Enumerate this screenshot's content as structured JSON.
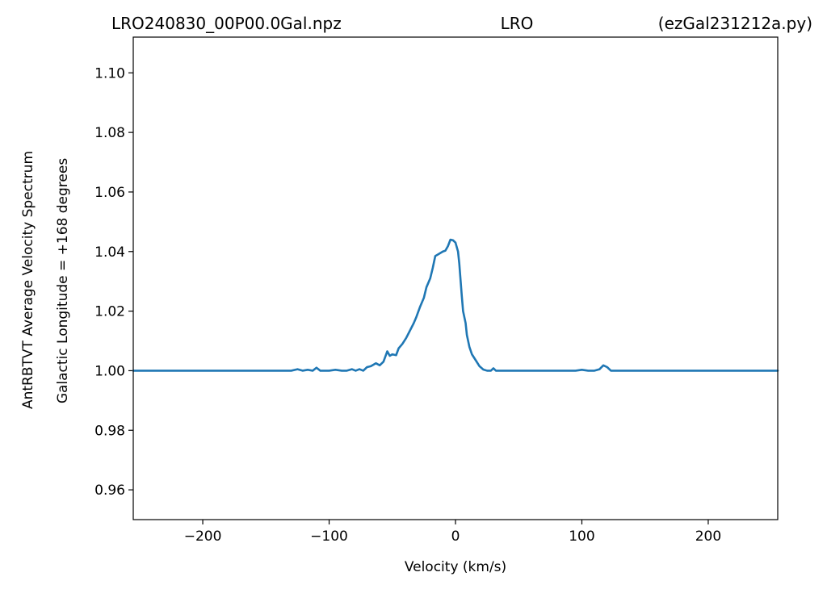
{
  "chart_data": {
    "type": "line",
    "title_left": "LRO240830_00P00.0Gal.npz",
    "title_center": "LRO",
    "title_right": "(ezGal231212a.py)",
    "xlabel": "Velocity (km/s)",
    "ylabel": "AntRBTVT Average Velocity Spectrum",
    "ylabel2": "Galactic Longitude = +168 degrees",
    "xlim": [
      -255,
      255
    ],
    "ylim": [
      0.95,
      1.112
    ],
    "xticks": [
      -200,
      -100,
      0,
      100,
      200
    ],
    "xtick_labels": [
      "−200",
      "−100",
      "0",
      "100",
      "200"
    ],
    "yticks": [
      0.96,
      0.98,
      1.0,
      1.02,
      1.04,
      1.06,
      1.08,
      1.1
    ],
    "ytick_labels": [
      "0.96",
      "0.98",
      "1.00",
      "1.02",
      "1.04",
      "1.06",
      "1.08",
      "1.10"
    ],
    "grid": false,
    "series": [
      {
        "color": "#1f77b4",
        "x": [
          -255,
          -130,
          -125,
          -121,
          -117,
          -113,
          -110,
          -107,
          -100,
          -95,
          -90,
          -86,
          -82,
          -79,
          -76,
          -73,
          -70,
          -67,
          -63,
          -60,
          -57,
          -54,
          -52,
          -50,
          -47,
          -45,
          -42,
          -39,
          -36,
          -33,
          -31,
          -28,
          -25,
          -23,
          -20,
          -18,
          -16,
          -14,
          -12,
          -10,
          -8,
          -6,
          -4,
          -2,
          0,
          2,
          3,
          5,
          6,
          8,
          9,
          11,
          13,
          16,
          19,
          22,
          25,
          28,
          30,
          32,
          35,
          40,
          50,
          60,
          70,
          80,
          90,
          95,
          100,
          105,
          110,
          114,
          117,
          120,
          123,
          130,
          140,
          160,
          200,
          255
        ],
        "y": [
          1.0,
          1.0,
          1.0005,
          1.0,
          1.0003,
          1.0,
          1.001,
          1.0,
          1.0,
          1.0003,
          1.0,
          1.0,
          1.0005,
          1.0,
          1.0005,
          1.0,
          1.0012,
          1.0015,
          1.0025,
          1.0018,
          1.003,
          1.0065,
          1.005,
          1.0055,
          1.0052,
          1.0075,
          1.009,
          1.011,
          1.0135,
          1.016,
          1.018,
          1.0215,
          1.0245,
          1.028,
          1.031,
          1.0345,
          1.0385,
          1.039,
          1.0395,
          1.04,
          1.0403,
          1.0418,
          1.044,
          1.0438,
          1.043,
          1.04,
          1.036,
          1.025,
          1.02,
          1.016,
          1.012,
          1.008,
          1.0055,
          1.0035,
          1.0015,
          1.0004,
          1.0,
          1.0,
          1.0008,
          1.0,
          1.0,
          1.0,
          1.0,
          1.0,
          1.0,
          1.0,
          1.0,
          1.0,
          1.0003,
          1.0,
          1.0,
          1.0005,
          1.0018,
          1.0012,
          1.0,
          1.0,
          1.0,
          1.0,
          1.0,
          1.0
        ]
      }
    ]
  }
}
